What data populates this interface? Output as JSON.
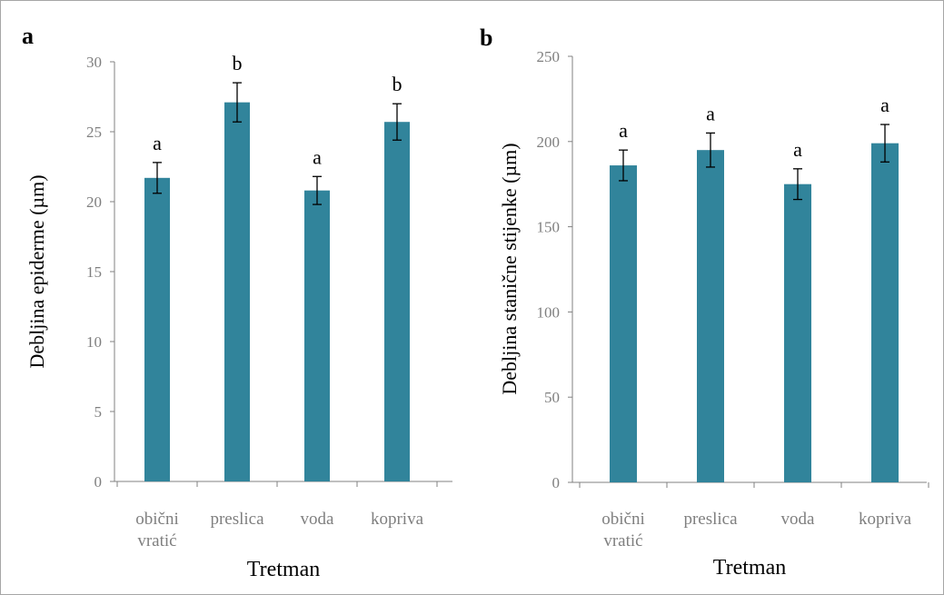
{
  "colors": {
    "bar": "#31849b",
    "axis": "#808080",
    "error": "#000000"
  },
  "chart_data": [
    {
      "type": "bar",
      "panel_label": "a",
      "categories": [
        [
          "obični",
          "vratić"
        ],
        [
          "preslica"
        ],
        [
          "voda"
        ],
        [
          "kopriva"
        ]
      ],
      "values": [
        21.7,
        27.1,
        20.8,
        25.7
      ],
      "errors": [
        1.1,
        1.4,
        1.0,
        1.3
      ],
      "significance": [
        "a",
        "b",
        "a",
        "b"
      ],
      "xlabel": "Tretman",
      "ylabel": "Debljina epiderme (µm)",
      "ylim": [
        0,
        30
      ],
      "yticks": [
        0,
        5,
        10,
        15,
        20,
        25,
        30
      ],
      "grid": false,
      "legend": "none"
    },
    {
      "type": "bar",
      "panel_label": "b",
      "categories": [
        [
          "obični",
          "vratić"
        ],
        [
          "preslica"
        ],
        [
          "voda"
        ],
        [
          "kopriva"
        ]
      ],
      "values": [
        186,
        195,
        175,
        199
      ],
      "errors": [
        9,
        10,
        9,
        11
      ],
      "significance": [
        "a",
        "a",
        "a",
        "a"
      ],
      "xlabel": "Tretman",
      "ylabel": "Debljina stanične stijenke (µm)",
      "ylim": [
        0,
        250
      ],
      "yticks": [
        0,
        50,
        100,
        150,
        200,
        250
      ],
      "grid": false,
      "legend": "none"
    }
  ]
}
